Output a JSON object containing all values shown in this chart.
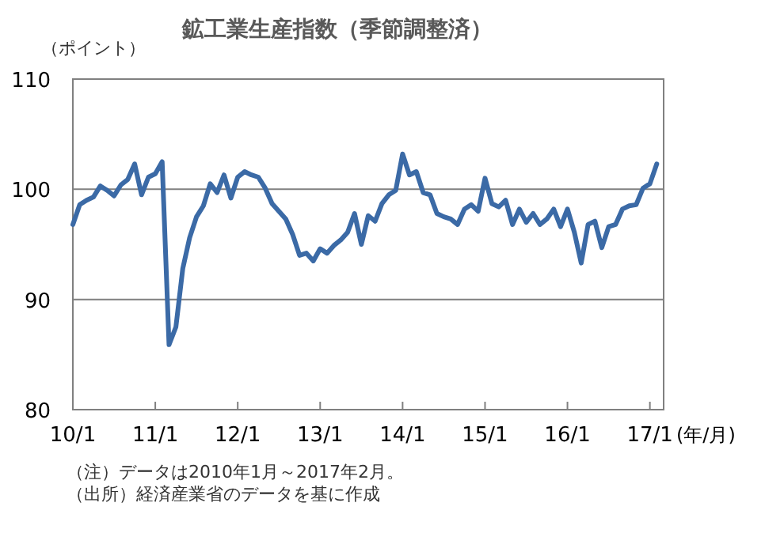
{
  "chart_data": {
    "type": "line",
    "title": "鉱工業生産指数（季節調整済）",
    "ylabel": "（ポイント）",
    "xlabel": "(年/月)",
    "x": [
      "2010-01",
      "2010-02",
      "2010-03",
      "2010-04",
      "2010-05",
      "2010-06",
      "2010-07",
      "2010-08",
      "2010-09",
      "2010-10",
      "2010-11",
      "2010-12",
      "2011-01",
      "2011-02",
      "2011-03",
      "2011-04",
      "2011-05",
      "2011-06",
      "2011-07",
      "2011-08",
      "2011-09",
      "2011-10",
      "2011-11",
      "2011-12",
      "2012-01",
      "2012-02",
      "2012-03",
      "2012-04",
      "2012-05",
      "2012-06",
      "2012-07",
      "2012-08",
      "2012-09",
      "2012-10",
      "2012-11",
      "2012-12",
      "2013-01",
      "2013-02",
      "2013-03",
      "2013-04",
      "2013-05",
      "2013-06",
      "2013-07",
      "2013-08",
      "2013-09",
      "2013-10",
      "2013-11",
      "2013-12",
      "2014-01",
      "2014-02",
      "2014-03",
      "2014-04",
      "2014-05",
      "2014-06",
      "2014-07",
      "2014-08",
      "2014-09",
      "2014-10",
      "2014-11",
      "2014-12",
      "2015-01",
      "2015-02",
      "2015-03",
      "2015-04",
      "2015-05",
      "2015-06",
      "2015-07",
      "2015-08",
      "2015-09",
      "2015-10",
      "2015-11",
      "2015-12",
      "2016-01",
      "2016-02",
      "2016-03",
      "2016-04",
      "2016-05",
      "2016-06",
      "2016-07",
      "2016-08",
      "2016-09",
      "2016-10",
      "2016-11",
      "2016-12",
      "2017-01",
      "2017-02"
    ],
    "series": [
      {
        "color": "#3b6aa6",
        "values": [
          96.8,
          98.6,
          99.0,
          99.3,
          100.3,
          99.9,
          99.4,
          100.4,
          100.9,
          102.3,
          99.5,
          101.1,
          101.4,
          102.5,
          85.9,
          87.5,
          92.8,
          95.6,
          97.5,
          98.5,
          100.5,
          99.7,
          101.3,
          99.2,
          101.1,
          101.6,
          101.3,
          101.1,
          100.1,
          98.7,
          98.0,
          97.3,
          95.9,
          94.0,
          94.2,
          93.5,
          94.6,
          94.2,
          94.9,
          95.4,
          96.1,
          97.8,
          95.0,
          97.6,
          97.1,
          98.7,
          99.5,
          99.9,
          103.2,
          101.3,
          101.6,
          99.7,
          99.5,
          97.8,
          97.5,
          97.3,
          96.8,
          98.2,
          98.6,
          98.0,
          101.0,
          98.7,
          98.4,
          99.0,
          96.8,
          98.2,
          97.0,
          97.8,
          96.8,
          97.3,
          98.2,
          96.6,
          98.2,
          96.1,
          93.3,
          96.8,
          97.1,
          94.7,
          96.6,
          96.8,
          98.2,
          98.5,
          98.6,
          100.1,
          100.5,
          102.3
        ]
      }
    ],
    "xlim": [
      "2010-01",
      "2017-03"
    ],
    "xticks": [
      {
        "value": "2010-01",
        "label": "10/1"
      },
      {
        "value": "2011-01",
        "label": "11/1"
      },
      {
        "value": "2012-01",
        "label": "12/1"
      },
      {
        "value": "2013-01",
        "label": "13/1"
      },
      {
        "value": "2014-01",
        "label": "14/1"
      },
      {
        "value": "2015-01",
        "label": "15/1"
      },
      {
        "value": "2016-01",
        "label": "16/1"
      },
      {
        "value": "2017-01",
        "label": "17/1"
      }
    ],
    "ylim": [
      80,
      110
    ],
    "yticks": [
      80,
      90,
      100,
      110
    ],
    "grid": "y",
    "marker": "none",
    "line_style": "solid",
    "annotations": [
      "（注）データは2010年1月～2017年2月。",
      "（出所）経済産業省のデータを基に作成"
    ]
  }
}
